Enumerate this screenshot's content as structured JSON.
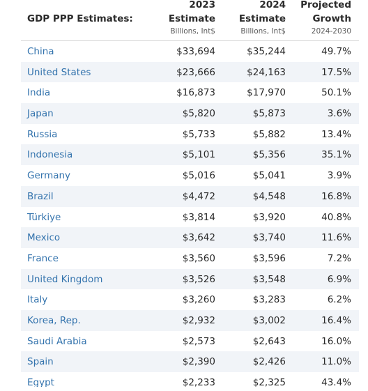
{
  "header": {
    "title": "GDP PPP Estimates:",
    "col2023": {
      "line1": "2023",
      "line2": "Estimate",
      "sub": "Billions, Int$"
    },
    "col2024": {
      "line1": "2024",
      "line2": "Estimate",
      "sub": "Billions, Int$"
    },
    "growth": {
      "line1": "Projected",
      "line2": "Growth",
      "sub": "2024-2030"
    }
  },
  "rows": [
    {
      "country": "China",
      "v2023": "$33,694",
      "v2024": "$35,244",
      "growth": "49.7%"
    },
    {
      "country": "United States",
      "v2023": "$23,666",
      "v2024": "$24,163",
      "growth": "17.5%"
    },
    {
      "country": "India",
      "v2023": "$16,873",
      "v2024": "$17,970",
      "growth": "50.1%"
    },
    {
      "country": "Japan",
      "v2023": "$5,820",
      "v2024": "$5,873",
      "growth": "3.6%"
    },
    {
      "country": "Russia",
      "v2023": "$5,733",
      "v2024": "$5,882",
      "growth": "13.4%"
    },
    {
      "country": "Indonesia",
      "v2023": "$5,101",
      "v2024": "$5,356",
      "growth": "35.1%"
    },
    {
      "country": "Germany",
      "v2023": "$5,016",
      "v2024": "$5,041",
      "growth": "3.9%"
    },
    {
      "country": "Brazil",
      "v2023": "$4,472",
      "v2024": "$4,548",
      "growth": "16.8%"
    },
    {
      "country": "Türkiye",
      "v2023": "$3,814",
      "v2024": "$3,920",
      "growth": "40.8%"
    },
    {
      "country": "Mexico",
      "v2023": "$3,642",
      "v2024": "$3,740",
      "growth": "11.6%"
    },
    {
      "country": "France",
      "v2023": "$3,560",
      "v2024": "$3,596",
      "growth": "7.2%"
    },
    {
      "country": "United Kingdom",
      "v2023": "$3,526",
      "v2024": "$3,548",
      "growth": "6.9%"
    },
    {
      "country": "Italy",
      "v2023": "$3,260",
      "v2024": "$3,283",
      "growth": "6.2%"
    },
    {
      "country": "Korea, Rep.",
      "v2023": "$2,932",
      "v2024": "$3,002",
      "growth": "16.4%"
    },
    {
      "country": "Saudi Arabia",
      "v2023": "$2,573",
      "v2024": "$2,643",
      "growth": "16.0%"
    },
    {
      "country": "Spain",
      "v2023": "$2,390",
      "v2024": "$2,426",
      "growth": "11.0%"
    },
    {
      "country": "Egypt",
      "v2023": "$2,233",
      "v2024": "$2,325",
      "growth": "43.4%"
    }
  ],
  "colors": {
    "link": "#3373ad",
    "alt_row": "#f1f4f8",
    "text": "#2b2b2b"
  }
}
